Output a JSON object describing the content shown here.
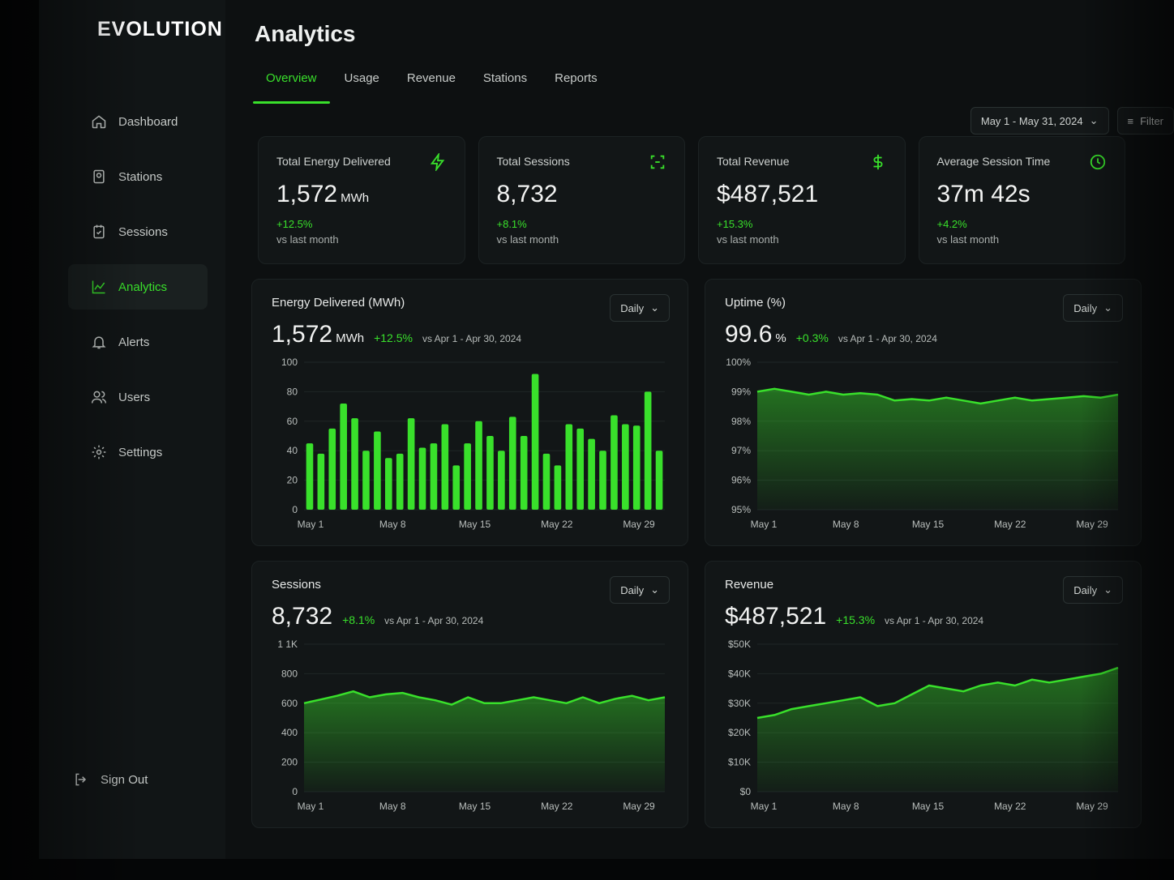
{
  "brand": {
    "name": "EVOLUTION"
  },
  "sidebar": {
    "items": [
      {
        "label": "Dashboard",
        "icon": "home-icon"
      },
      {
        "label": "Stations",
        "icon": "station-icon"
      },
      {
        "label": "Sessions",
        "icon": "sessions-icon"
      },
      {
        "label": "Analytics",
        "icon": "analytics-icon",
        "active": true
      },
      {
        "label": "Alerts",
        "icon": "bell-icon"
      },
      {
        "label": "Users",
        "icon": "users-icon"
      },
      {
        "label": "Settings",
        "icon": "gear-icon"
      }
    ],
    "sign_out": "Sign Out"
  },
  "header": {
    "title": "Analytics"
  },
  "tabs": [
    {
      "label": "Overview",
      "active": true
    },
    {
      "label": "Usage"
    },
    {
      "label": "Revenue"
    },
    {
      "label": "Stations"
    },
    {
      "label": "Reports"
    }
  ],
  "toolbar": {
    "date_range": "May 1 - May 31, 2024",
    "filter_label": "Filter"
  },
  "kpis": [
    {
      "label": "Total Energy Delivered",
      "value": "1,572",
      "unit": "MWh",
      "change": "+12.5%",
      "sub": "vs last month",
      "icon": "lightning-icon"
    },
    {
      "label": "Total Sessions",
      "value": "8,732",
      "unit": "",
      "change": "+8.1%",
      "sub": "vs last month",
      "icon": "sessions-scan-icon"
    },
    {
      "label": "Total Revenue",
      "value": "$487,521",
      "unit": "",
      "change": "+15.3%",
      "sub": "vs last month",
      "icon": "dollar-icon"
    },
    {
      "label": "Average Session Time",
      "value": "37m 42s",
      "unit": "",
      "change": "+4.2%",
      "sub": "vs last month",
      "icon": "clock-icon"
    }
  ],
  "panels": [
    {
      "title": "Energy Delivered (MWh)",
      "value": "1,572",
      "unit": "MWh",
      "change": "+12.5%",
      "compare": "vs Apr 1 - Apr 30, 2024",
      "dropdown": "Daily"
    },
    {
      "title": "Uptime (%)",
      "value": "99.6",
      "unit": "%",
      "change": "+0.3%",
      "compare": "vs Apr 1 - Apr 30, 2024",
      "dropdown": "Daily"
    },
    {
      "title": "Sessions",
      "value": "8,732",
      "unit": "",
      "change": "+8.1%",
      "compare": "vs Apr 1 - Apr 30, 2024",
      "dropdown": "Daily"
    },
    {
      "title": "Revenue",
      "value": "$487,521",
      "unit": "",
      "change": "+15.3%",
      "compare": "vs Apr 1 - Apr 30, 2024",
      "dropdown": "Daily"
    }
  ],
  "colors": {
    "accent": "#39e02b",
    "background": "#0d1011",
    "card": "#121617"
  },
  "chart_data": [
    {
      "type": "bar",
      "title": "Energy Delivered (MWh)",
      "x_ticks": [
        "May 1",
        "May 8",
        "May 15",
        "May 22",
        "May 29"
      ],
      "y_ticks": [
        "100",
        "80",
        "60",
        "40",
        "20",
        "0"
      ],
      "ylim": [
        0,
        100
      ],
      "values": [
        45,
        38,
        55,
        72,
        62,
        40,
        53,
        35,
        38,
        62,
        42,
        45,
        58,
        30,
        45,
        60,
        50,
        40,
        63,
        50,
        92,
        38,
        30,
        58,
        55,
        48,
        40,
        64,
        58,
        57,
        80,
        40
      ]
    },
    {
      "type": "area",
      "title": "Uptime (%)",
      "x_ticks": [
        "May 1",
        "May 8",
        "May 15",
        "May 22",
        "May 29"
      ],
      "y_ticks": [
        "100%",
        "99%",
        "98%",
        "97%",
        "96%",
        "95%"
      ],
      "ylim": [
        95,
        100
      ],
      "values": [
        99.0,
        99.1,
        99.0,
        98.9,
        99.0,
        98.9,
        98.95,
        98.9,
        98.7,
        98.75,
        98.7,
        98.8,
        98.7,
        98.6,
        98.7,
        98.8,
        98.7,
        98.75,
        98.8,
        98.85,
        98.8,
        98.9
      ]
    },
    {
      "type": "area",
      "title": "Sessions",
      "x_ticks": [
        "May 1",
        "May 8",
        "May 15",
        "May 22",
        "May 29"
      ],
      "y_ticks": [
        "1 1K",
        "800",
        "600",
        "400",
        "200",
        "0"
      ],
      "ylim": [
        0,
        1000
      ],
      "values": [
        600,
        625,
        650,
        680,
        640,
        660,
        670,
        640,
        620,
        590,
        640,
        600,
        600,
        620,
        640,
        620,
        600,
        640,
        600,
        630,
        650,
        620,
        640
      ]
    },
    {
      "type": "area",
      "title": "Revenue",
      "x_ticks": [
        "May 1",
        "May 8",
        "May 15",
        "May 22",
        "May 29"
      ],
      "y_ticks": [
        "$50K",
        "$40K",
        "$30K",
        "$20K",
        "$10K",
        "$0"
      ],
      "ylim": [
        0,
        50000
      ],
      "values": [
        25000,
        26000,
        28000,
        29000,
        30000,
        31000,
        32000,
        29000,
        30000,
        33000,
        36000,
        35000,
        34000,
        36000,
        37000,
        36000,
        38000,
        37000,
        38000,
        39000,
        40000,
        42000
      ]
    }
  ]
}
